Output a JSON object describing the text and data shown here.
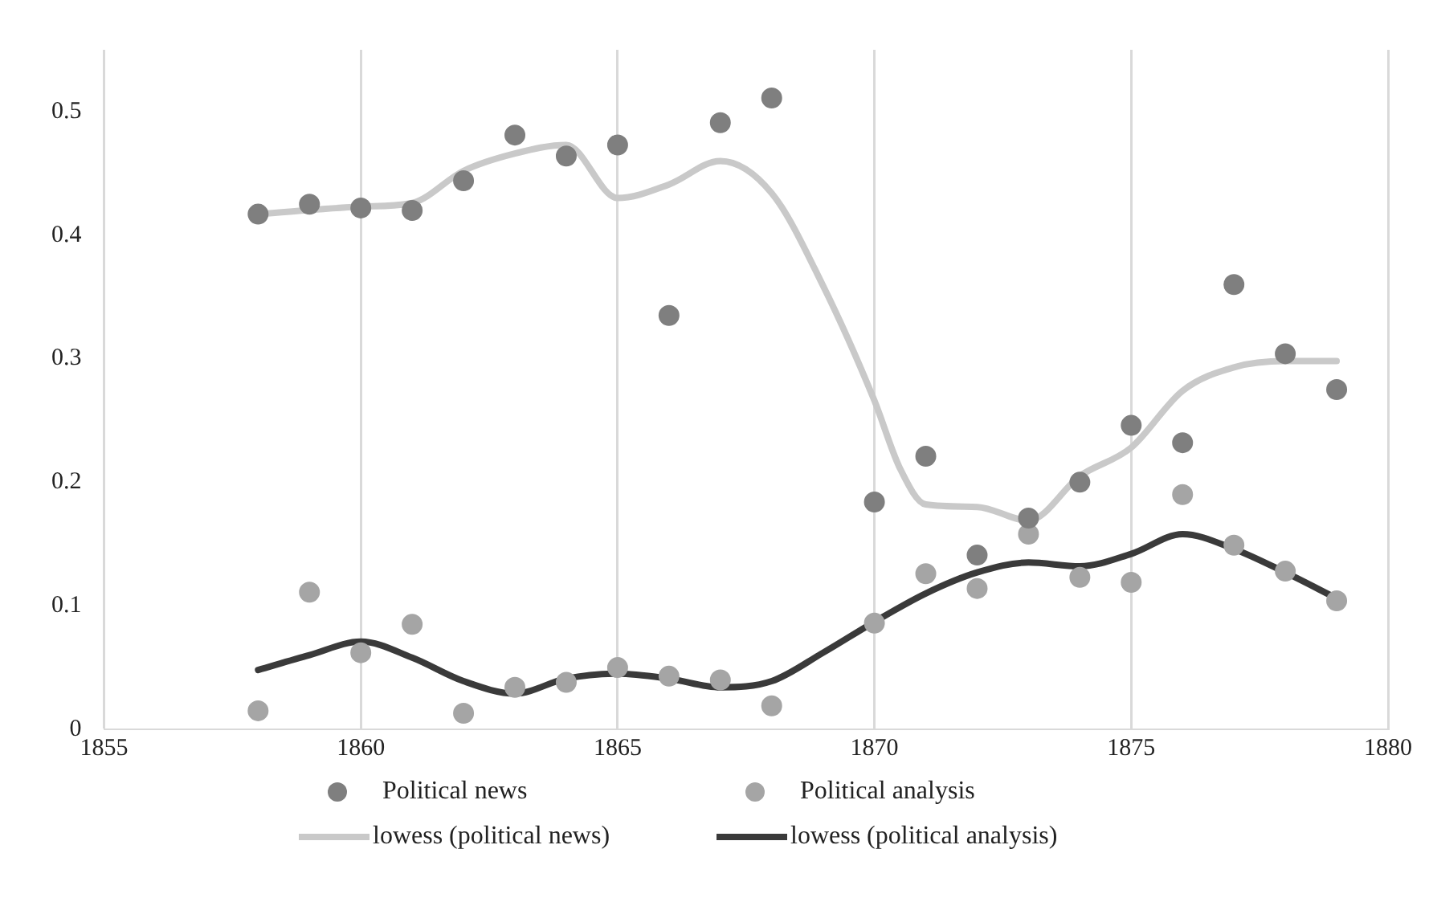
{
  "chart_data": {
    "type": "scatter",
    "xlim": [
      1855,
      1880
    ],
    "xticks": [
      1855,
      1860,
      1865,
      1870,
      1875,
      1880
    ],
    "ylim": [
      0,
      0.55
    ],
    "yticks": [
      0,
      0.1,
      0.2,
      0.3,
      0.4,
      0.5
    ],
    "grid": "x",
    "legend": "bottom",
    "marker": "circle",
    "series": [
      {
        "name": "Political news",
        "color": "#7f7f7f",
        "x": [
          1858,
          1859,
          1860,
          1861,
          1862,
          1863,
          1864,
          1865,
          1866,
          1867,
          1868,
          1870,
          1871,
          1872,
          1873,
          1874,
          1875,
          1876,
          1877,
          1878,
          1879
        ],
        "values": [
          0.417,
          0.425,
          0.422,
          0.42,
          0.444,
          0.481,
          0.464,
          0.473,
          0.335,
          0.491,
          0.511,
          0.184,
          0.221,
          0.141,
          0.171,
          0.2,
          0.246,
          0.232,
          0.36,
          0.304,
          0.275
        ]
      },
      {
        "name": "Political analysis",
        "color": "#a5a5a5",
        "x": [
          1858,
          1859,
          1860,
          1861,
          1862,
          1863,
          1864,
          1865,
          1866,
          1867,
          1868,
          1870,
          1871,
          1872,
          1873,
          1874,
          1875,
          1876,
          1877,
          1878,
          1879
        ],
        "values": [
          0.015,
          0.111,
          0.062,
          0.085,
          0.013,
          0.034,
          0.038,
          0.05,
          0.043,
          0.04,
          0.019,
          0.086,
          0.126,
          0.114,
          0.158,
          0.123,
          0.119,
          0.19,
          0.149,
          0.128,
          0.104
        ]
      },
      {
        "name": "lowess (political news)",
        "type": "line",
        "marker": "none",
        "color": "#c9c9c9",
        "x": [
          1858,
          1860,
          1861,
          1862,
          1863,
          1864,
          1865,
          1866,
          1867,
          1868,
          1869,
          1870,
          1870.5,
          1871,
          1872,
          1873,
          1874,
          1875,
          1876,
          1877,
          1878,
          1879
        ],
        "values": [
          0.417,
          0.423,
          0.426,
          0.452,
          0.466,
          0.473,
          0.43,
          0.441,
          0.46,
          0.434,
          0.359,
          0.266,
          0.211,
          0.182,
          0.18,
          0.169,
          0.205,
          0.228,
          0.274,
          0.293,
          0.298,
          0.298
        ]
      },
      {
        "name": "lowess (political analysis)",
        "type": "line",
        "marker": "none",
        "color": "#3a3a3a",
        "x": [
          1858,
          1859,
          1860,
          1861,
          1862,
          1863,
          1864,
          1865,
          1866,
          1867,
          1868,
          1869,
          1870,
          1871,
          1872,
          1873,
          1874,
          1875,
          1876,
          1877,
          1878,
          1879
        ],
        "values": [
          0.048,
          0.06,
          0.071,
          0.058,
          0.039,
          0.029,
          0.041,
          0.045,
          0.041,
          0.034,
          0.039,
          0.062,
          0.087,
          0.11,
          0.127,
          0.135,
          0.132,
          0.142,
          0.158,
          0.146,
          0.127,
          0.106
        ]
      }
    ]
  }
}
